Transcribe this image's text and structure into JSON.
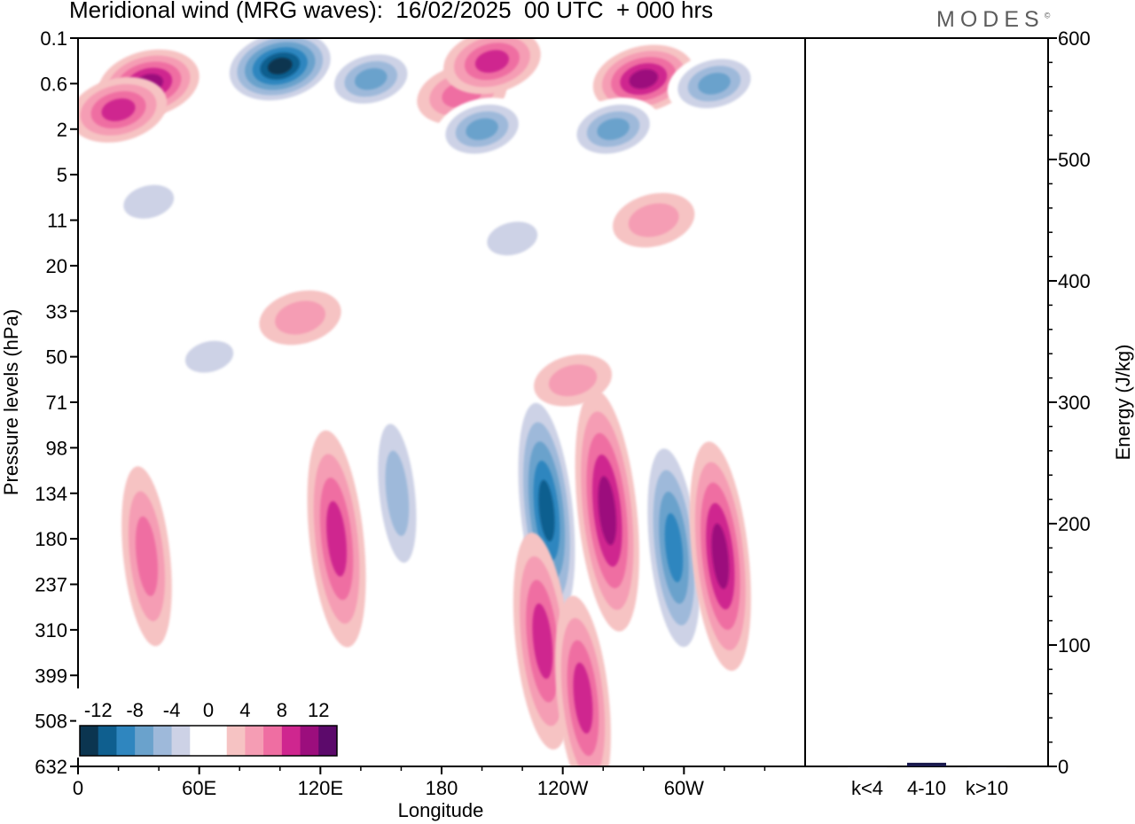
{
  "header": {
    "title": "Meridional wind (MRG waves):  16/02/2025  00 UTC  + 000 hrs",
    "brand": "MODES",
    "brand_mark": "©"
  },
  "chart_data": [
    {
      "type": "heatmap",
      "title": "Meridional wind (MRG waves):  16/02/2025  00 UTC  + 000 hrs",
      "xlabel": "Longitude",
      "ylabel": "Pressure levels (hPa)",
      "x_ticks": [
        "0",
        "60E",
        "120E",
        "180",
        "120W",
        "60W"
      ],
      "y_ticks": [
        "0.1",
        "0.6",
        "2",
        "5",
        "11",
        "20",
        "33",
        "50",
        "71",
        "98",
        "134",
        "180",
        "237",
        "310",
        "399",
        "508",
        "632"
      ],
      "colorbar": {
        "labels": [
          "-12",
          "-8",
          "-4",
          "0",
          "4",
          "8",
          "12"
        ],
        "colors": [
          "#0b3550",
          "#0f5f8f",
          "#2f86bf",
          "#6aa2cc",
          "#9eb9da",
          "#cdd2e6",
          "#ffffff",
          "#ffffff",
          "#f6c3c3",
          "#f59db4",
          "#ef6ea2",
          "#cf268f",
          "#9c0e7d",
          "#5c0a6b"
        ]
      },
      "features": [
        {
          "lon": 100,
          "p": 0.3,
          "v": -14
        },
        {
          "lon": 35,
          "p": 0.6,
          "v": 10
        },
        {
          "lon": 20,
          "p": 1.2,
          "v": 9
        },
        {
          "lon": 145,
          "p": 0.5,
          "v": -8
        },
        {
          "lon": 190,
          "p": 0.8,
          "v": 7
        },
        {
          "lon": 205,
          "p": 0.25,
          "v": 9
        },
        {
          "lon": 280,
          "p": 0.5,
          "v": 10
        },
        {
          "lon": 315,
          "p": 0.6,
          "v": -8
        },
        {
          "lon": 200,
          "p": 2,
          "v": -8
        },
        {
          "lon": 265,
          "p": 2,
          "v": -8
        },
        {
          "lon": 158,
          "p": 134,
          "v": -7
        },
        {
          "lon": 232,
          "p": 150,
          "v": -12
        },
        {
          "lon": 262,
          "p": 150,
          "v": 11
        },
        {
          "lon": 295,
          "p": 190,
          "v": -11
        },
        {
          "lon": 318,
          "p": 200,
          "v": 10
        },
        {
          "lon": 128,
          "p": 180,
          "v": 9
        },
        {
          "lon": 34,
          "p": 200,
          "v": 6
        },
        {
          "lon": 230,
          "p": 330,
          "v": 9
        },
        {
          "lon": 250,
          "p": 450,
          "v": 8
        },
        {
          "lon": 245,
          "p": 60,
          "v": 4
        },
        {
          "lon": 285,
          "p": 11,
          "v": 5
        },
        {
          "lon": 110,
          "p": 35,
          "v": 5
        },
        {
          "lon": 215,
          "p": 14,
          "v": -5
        },
        {
          "lon": 35,
          "p": 8,
          "v": -5
        },
        {
          "lon": 65,
          "p": 50,
          "v": -4
        }
      ]
    },
    {
      "type": "bar",
      "ylabel": "Energy (J/kg)",
      "categories": [
        "k<4",
        "4-10",
        "k>10"
      ],
      "values": [
        0,
        3,
        0
      ],
      "ylim": [
        0,
        600
      ],
      "y_ticks": [
        "0",
        "100",
        "200",
        "300",
        "400",
        "500",
        "600"
      ],
      "bar_color": "#1a1a4e"
    }
  ]
}
